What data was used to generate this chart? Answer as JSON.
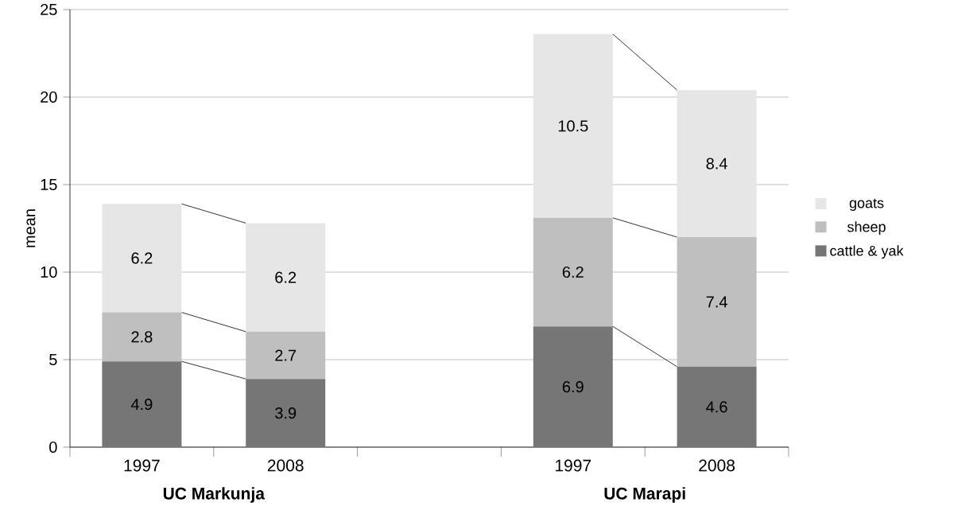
{
  "chart_data": {
    "type": "bar",
    "stacked": true,
    "ylabel": "mean",
    "categories": [
      "1997",
      "2008",
      null,
      "1997",
      "2008"
    ],
    "series": [
      {
        "name": "cattle & yak",
        "color": "#767676",
        "values": [
          4.9,
          3.9,
          null,
          6.9,
          4.6
        ]
      },
      {
        "name": "sheep",
        "color": "#bfbfbf",
        "values": [
          2.8,
          2.7,
          null,
          6.2,
          7.4
        ]
      },
      {
        "name": "goats",
        "color": "#e6e6e6",
        "values": [
          6.2,
          6.2,
          null,
          10.5,
          8.4
        ]
      }
    ],
    "ylim": [
      0,
      25
    ],
    "yticks": [
      0,
      5,
      10,
      15,
      20,
      25
    ],
    "grid": "y",
    "legend": "right",
    "data_labels": true,
    "annotations": [
      "UC Markunja",
      "UC Marapi"
    ]
  }
}
